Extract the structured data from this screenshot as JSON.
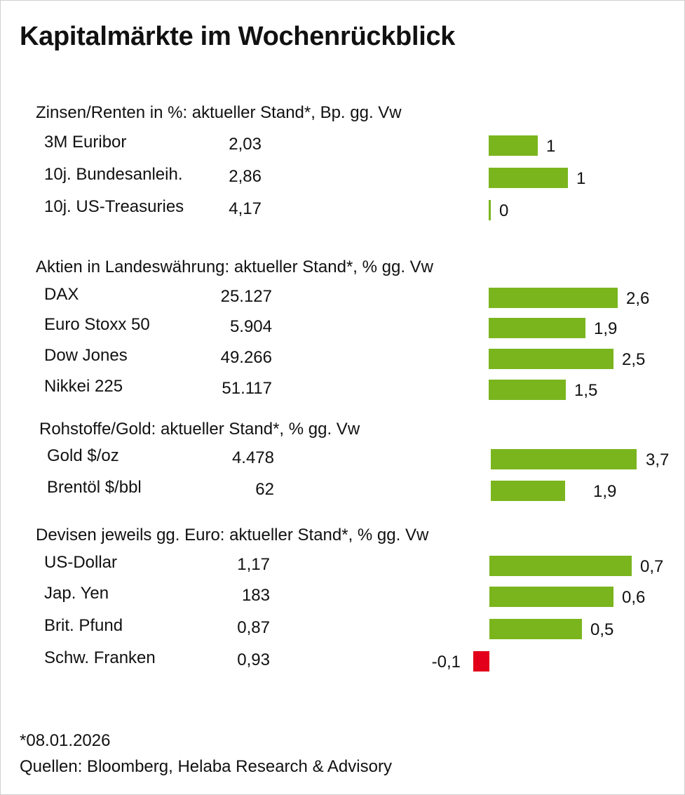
{
  "title": "Kapitalmärkte im Wochenrückblick",
  "colors": {
    "positive": "#7ab51d",
    "negative": "#e2001a"
  },
  "chart_data": {
    "type": "bar",
    "title": "Kapitalmärkte im Wochenrückblick",
    "groups": [
      {
        "header": "Zinsen/Renten in %: aktueller Stand*, Bp. gg. Vw",
        "rows": [
          {
            "name": "3M Euribor",
            "level": "2,03",
            "change": 1,
            "change_label": "1"
          },
          {
            "name": "10j. Bundesanleih.",
            "level": "2,86",
            "change": 1,
            "change_label": "1"
          },
          {
            "name": "10j. US-Treasuries",
            "level": "4,17",
            "change": 0,
            "change_label": "0"
          }
        ]
      },
      {
        "header": "Aktien in Landeswährung: aktueller Stand*, % gg. Vw",
        "rows": [
          {
            "name": "DAX",
            "level": "25.127",
            "change": 2.6,
            "change_label": "2,6"
          },
          {
            "name": "Euro Stoxx 50",
            "level": "5.904",
            "change": 1.9,
            "change_label": "1,9"
          },
          {
            "name": "Dow Jones",
            "level": "49.266",
            "change": 2.5,
            "change_label": "2,5"
          },
          {
            "name": "Nikkei 225",
            "level": "51.117",
            "change": 1.5,
            "change_label": "1,5"
          }
        ]
      },
      {
        "header": "Rohstoffe/Gold: aktueller Stand*, % gg. Vw",
        "rows": [
          {
            "name": "Gold $/oz",
            "level": "4.478",
            "change": 3.7,
            "change_label": "3,7"
          },
          {
            "name": "Brentöl $/bbl",
            "level": "62",
            "change": 1.9,
            "change_label": "1,9"
          }
        ]
      },
      {
        "header": "Devisen jeweils gg. Euro: aktueller Stand*, % gg. Vw",
        "rows": [
          {
            "name": "US-Dollar",
            "level": "1,17",
            "change": 0.7,
            "change_label": "0,7"
          },
          {
            "name": "Jap. Yen",
            "level": "183",
            "change": 0.6,
            "change_label": "0,6"
          },
          {
            "name": "Brit. Pfund",
            "level": "0,87",
            "change": 0.5,
            "change_label": "0,5"
          },
          {
            "name": "Schw. Franken",
            "level": "0,93",
            "change": -0.1,
            "change_label": "-0,1"
          }
        ]
      }
    ]
  },
  "footnote": "*08.01.2026",
  "sources": "Quellen: Bloomberg, Helaba Research & Advisory"
}
